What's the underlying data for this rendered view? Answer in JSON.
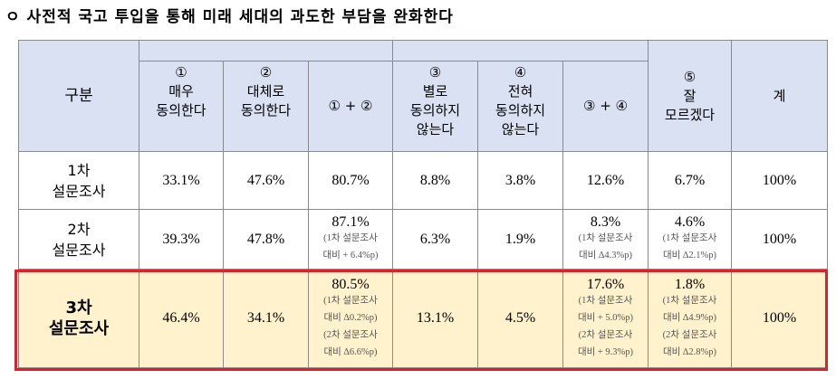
{
  "title": "ㅇ 사전적 국고 투입을 통해 미래 세대의 과도한 부담을 완화한다",
  "headers": {
    "category": "구분",
    "col1": {
      "num": "①",
      "line1": "매우",
      "line2": "동의한다"
    },
    "col2": {
      "num": "②",
      "line1": "대체로",
      "line2": "동의한다"
    },
    "col12": "① + ②",
    "col3": {
      "num": "③",
      "line1": "별로",
      "line2": "동의하지",
      "line3": "않는다"
    },
    "col4": {
      "num": "④",
      "line1": "전혀",
      "line2": "동의하지",
      "line3": "않는다"
    },
    "col34": "③ + ④",
    "col5": {
      "num": "⑤",
      "line1": "잘",
      "line2": "모르겠다"
    },
    "total": "계"
  },
  "rows": [
    {
      "label1": "1차",
      "label2": "설문조사",
      "c1": "33.1%",
      "c2": "47.6%",
      "c12": "80.7%",
      "c3": "8.8%",
      "c4": "3.8%",
      "c34": "12.6%",
      "c5": "6.7%",
      "total": "100%"
    },
    {
      "label1": "2차",
      "label2": "설문조사",
      "c1": "39.3%",
      "c2": "47.8%",
      "c12": "87.1%",
      "c12_n1": "(1차 설문조사",
      "c12_n2": "대비 + 6.4%p)",
      "c3": "6.3%",
      "c4": "1.9%",
      "c34": "8.3%",
      "c34_n1": "(1차 설문조사",
      "c34_n2": "대비 ∆4.3%p)",
      "c5": "4.6%",
      "c5_n1": "(1차 설문조사",
      "c5_n2": "대비 ∆2.1%p)",
      "total": "100%"
    },
    {
      "label1": "3차",
      "label2": "설문조사",
      "c1": "46.4%",
      "c2": "34.1%",
      "c12": "80.5%",
      "c12_n1": "(1차 설문조사",
      "c12_n2": "대비 ∆0.2%p)",
      "c12_n3": "(2차 설문조사",
      "c12_n4": "대비 ∆6.6%p)",
      "c3": "13.1%",
      "c4": "4.5%",
      "c34": "17.6%",
      "c34_n1": "(1차 설문조사",
      "c34_n2": "대비 + 5.0%p)",
      "c34_n3": "(2차 설문조사",
      "c34_n4": "대비 + 9.3%p)",
      "c5": "1.8%",
      "c5_n1": "(1차 설문조사",
      "c5_n2": "대비 ∆4.9%p)",
      "c5_n3": "(2차 설문조사",
      "c5_n4": "대비 ∆2.8%p)",
      "total": "100%"
    }
  ]
}
